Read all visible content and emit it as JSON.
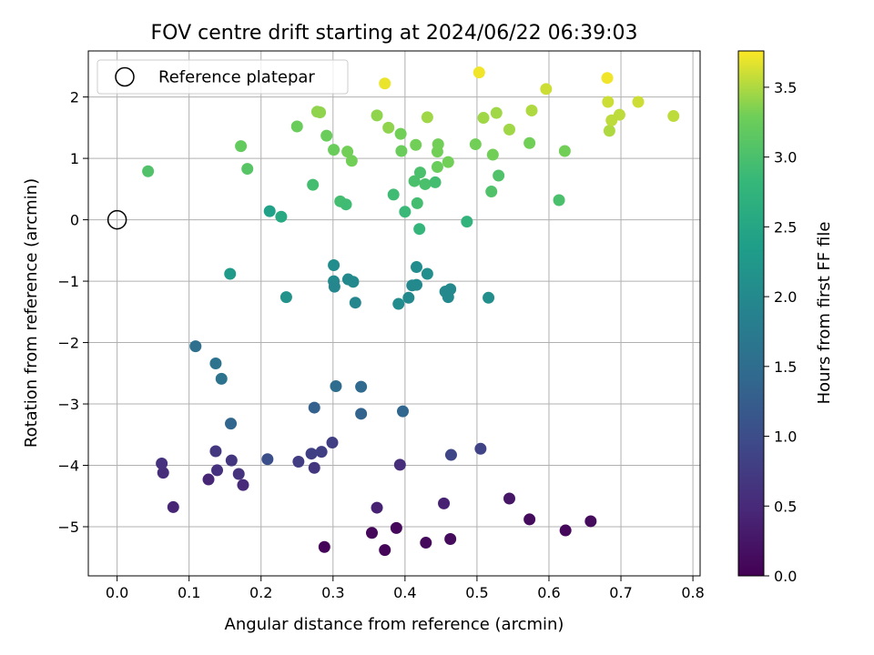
{
  "chart_data": {
    "type": "scatter",
    "title": "FOV centre drift starting at 2024/06/22 06:39:03",
    "xlabel": "Angular distance from reference (arcmin)",
    "ylabel": "Rotation from reference (arcmin)",
    "xlim": [
      -0.04,
      0.81
    ],
    "ylim": [
      -5.8,
      2.75
    ],
    "xticks": [
      "0.0",
      "0.1",
      "0.2",
      "0.3",
      "0.4",
      "0.5",
      "0.6",
      "0.7",
      "0.8"
    ],
    "yticks": [
      "−5",
      "−4",
      "−3",
      "−2",
      "−1",
      "0",
      "1",
      "2"
    ],
    "grid": true,
    "legend": {
      "placement": "top-left",
      "entries": [
        "Reference platepar"
      ]
    },
    "reference_point": {
      "x": 0.0,
      "y": 0.0
    },
    "colorbar": {
      "label": "Hours from first FF file",
      "range": [
        0.0,
        3.76
      ],
      "ticks": [
        "0.0",
        "0.5",
        "1.0",
        "1.5",
        "2.0",
        "2.5",
        "3.0",
        "3.5"
      ],
      "colormap": "viridis"
    },
    "points": [
      {
        "x": 0.288,
        "y": -5.33,
        "t": 0.05
      },
      {
        "x": 0.372,
        "y": -5.38,
        "t": 0.05
      },
      {
        "x": 0.354,
        "y": -5.1,
        "t": 0.08
      },
      {
        "x": 0.388,
        "y": -5.02,
        "t": 0.08
      },
      {
        "x": 0.429,
        "y": -5.26,
        "t": 0.1
      },
      {
        "x": 0.463,
        "y": -5.2,
        "t": 0.12
      },
      {
        "x": 0.623,
        "y": -5.06,
        "t": 0.08
      },
      {
        "x": 0.658,
        "y": -4.91,
        "t": 0.12
      },
      {
        "x": 0.573,
        "y": -4.88,
        "t": 0.12
      },
      {
        "x": 0.545,
        "y": -4.54,
        "t": 0.25
      },
      {
        "x": 0.361,
        "y": -4.69,
        "t": 0.4
      },
      {
        "x": 0.454,
        "y": -4.62,
        "t": 0.4
      },
      {
        "x": 0.078,
        "y": -4.68,
        "t": 0.45
      },
      {
        "x": 0.127,
        "y": -4.23,
        "t": 0.45
      },
      {
        "x": 0.175,
        "y": -4.32,
        "t": 0.5
      },
      {
        "x": 0.064,
        "y": -4.12,
        "t": 0.55
      },
      {
        "x": 0.062,
        "y": -3.97,
        "t": 0.6
      },
      {
        "x": 0.139,
        "y": -4.08,
        "t": 0.6
      },
      {
        "x": 0.169,
        "y": -4.14,
        "t": 0.62
      },
      {
        "x": 0.159,
        "y": -3.92,
        "t": 0.65
      },
      {
        "x": 0.137,
        "y": -3.77,
        "t": 0.7
      },
      {
        "x": 0.252,
        "y": -3.94,
        "t": 0.75
      },
      {
        "x": 0.274,
        "y": -4.04,
        "t": 0.65
      },
      {
        "x": 0.27,
        "y": -3.81,
        "t": 0.8
      },
      {
        "x": 0.284,
        "y": -3.78,
        "t": 0.8
      },
      {
        "x": 0.299,
        "y": -3.63,
        "t": 0.8
      },
      {
        "x": 0.393,
        "y": -3.99,
        "t": 0.55
      },
      {
        "x": 0.464,
        "y": -3.83,
        "t": 0.9
      },
      {
        "x": 0.505,
        "y": -3.73,
        "t": 0.85
      },
      {
        "x": 0.209,
        "y": -3.9,
        "t": 1.05
      },
      {
        "x": 0.158,
        "y": -3.32,
        "t": 1.4
      },
      {
        "x": 0.274,
        "y": -3.06,
        "t": 1.3
      },
      {
        "x": 0.304,
        "y": -2.71,
        "t": 1.5
      },
      {
        "x": 0.339,
        "y": -2.72,
        "t": 1.45
      },
      {
        "x": 0.339,
        "y": -3.16,
        "t": 1.35
      },
      {
        "x": 0.397,
        "y": -3.12,
        "t": 1.4
      },
      {
        "x": 0.109,
        "y": -2.06,
        "t": 1.55
      },
      {
        "x": 0.137,
        "y": -2.34,
        "t": 1.6
      },
      {
        "x": 0.145,
        "y": -2.59,
        "t": 1.6
      },
      {
        "x": 0.301,
        "y": -1.0,
        "t": 2.0
      },
      {
        "x": 0.302,
        "y": -1.09,
        "t": 1.95
      },
      {
        "x": 0.301,
        "y": -0.74,
        "t": 2.05
      },
      {
        "x": 0.321,
        "y": -0.97,
        "t": 2.0
      },
      {
        "x": 0.328,
        "y": -1.01,
        "t": 2.0
      },
      {
        "x": 0.331,
        "y": -1.35,
        "t": 1.95
      },
      {
        "x": 0.391,
        "y": -1.37,
        "t": 2.05
      },
      {
        "x": 0.405,
        "y": -1.27,
        "t": 2.0
      },
      {
        "x": 0.41,
        "y": -1.07,
        "t": 2.0
      },
      {
        "x": 0.416,
        "y": -1.06,
        "t": 2.0
      },
      {
        "x": 0.416,
        "y": -0.77,
        "t": 2.05
      },
      {
        "x": 0.431,
        "y": -0.88,
        "t": 2.1
      },
      {
        "x": 0.456,
        "y": -1.17,
        "t": 2.0
      },
      {
        "x": 0.46,
        "y": -1.26,
        "t": 2.0
      },
      {
        "x": 0.463,
        "y": -1.13,
        "t": 2.0
      },
      {
        "x": 0.516,
        "y": -1.27,
        "t": 2.1
      },
      {
        "x": 0.235,
        "y": -1.26,
        "t": 2.15
      },
      {
        "x": 0.157,
        "y": -0.88,
        "t": 2.3
      },
      {
        "x": 0.212,
        "y": 0.14,
        "t": 2.4
      },
      {
        "x": 0.228,
        "y": 0.05,
        "t": 2.55
      },
      {
        "x": 0.42,
        "y": -0.15,
        "t": 2.8
      },
      {
        "x": 0.486,
        "y": -0.03,
        "t": 2.75
      },
      {
        "x": 0.272,
        "y": 0.57,
        "t": 2.95
      },
      {
        "x": 0.31,
        "y": 0.3,
        "t": 2.95
      },
      {
        "x": 0.318,
        "y": 0.25,
        "t": 2.9
      },
      {
        "x": 0.384,
        "y": 0.41,
        "t": 2.9
      },
      {
        "x": 0.4,
        "y": 0.13,
        "t": 2.85
      },
      {
        "x": 0.417,
        "y": 0.27,
        "t": 2.95
      },
      {
        "x": 0.413,
        "y": 0.63,
        "t": 3.0
      },
      {
        "x": 0.421,
        "y": 0.77,
        "t": 3.0
      },
      {
        "x": 0.428,
        "y": 0.58,
        "t": 3.0
      },
      {
        "x": 0.442,
        "y": 0.61,
        "t": 2.95
      },
      {
        "x": 0.52,
        "y": 0.46,
        "t": 3.05
      },
      {
        "x": 0.53,
        "y": 0.72,
        "t": 3.05
      },
      {
        "x": 0.614,
        "y": 0.32,
        "t": 3.0
      },
      {
        "x": 0.043,
        "y": 0.79,
        "t": 3.05
      },
      {
        "x": 0.181,
        "y": 0.83,
        "t": 3.1
      },
      {
        "x": 0.172,
        "y": 1.2,
        "t": 3.2
      },
      {
        "x": 0.25,
        "y": 1.52,
        "t": 3.25
      },
      {
        "x": 0.291,
        "y": 1.37,
        "t": 3.25
      },
      {
        "x": 0.301,
        "y": 1.14,
        "t": 3.25
      },
      {
        "x": 0.32,
        "y": 1.11,
        "t": 3.3
      },
      {
        "x": 0.326,
        "y": 0.96,
        "t": 3.3
      },
      {
        "x": 0.395,
        "y": 1.12,
        "t": 3.25
      },
      {
        "x": 0.394,
        "y": 1.4,
        "t": 3.3
      },
      {
        "x": 0.415,
        "y": 1.22,
        "t": 3.3
      },
      {
        "x": 0.445,
        "y": 1.11,
        "t": 3.3
      },
      {
        "x": 0.445,
        "y": 0.86,
        "t": 3.25
      },
      {
        "x": 0.446,
        "y": 1.23,
        "t": 3.3
      },
      {
        "x": 0.46,
        "y": 0.94,
        "t": 3.3
      },
      {
        "x": 0.498,
        "y": 1.23,
        "t": 3.3
      },
      {
        "x": 0.522,
        "y": 1.06,
        "t": 3.3
      },
      {
        "x": 0.573,
        "y": 1.25,
        "t": 3.3
      },
      {
        "x": 0.622,
        "y": 1.12,
        "t": 3.3
      },
      {
        "x": 0.278,
        "y": 1.76,
        "t": 3.4
      },
      {
        "x": 0.282,
        "y": 1.75,
        "t": 3.4
      },
      {
        "x": 0.361,
        "y": 1.7,
        "t": 3.4
      },
      {
        "x": 0.377,
        "y": 1.5,
        "t": 3.4
      },
      {
        "x": 0.431,
        "y": 1.67,
        "t": 3.45
      },
      {
        "x": 0.509,
        "y": 1.66,
        "t": 3.45
      },
      {
        "x": 0.527,
        "y": 1.74,
        "t": 3.45
      },
      {
        "x": 0.545,
        "y": 1.47,
        "t": 3.45
      },
      {
        "x": 0.576,
        "y": 1.78,
        "t": 3.5
      },
      {
        "x": 0.596,
        "y": 2.13,
        "t": 3.6
      },
      {
        "x": 0.684,
        "y": 1.45,
        "t": 3.5
      },
      {
        "x": 0.687,
        "y": 1.62,
        "t": 3.55
      },
      {
        "x": 0.698,
        "y": 1.71,
        "t": 3.55
      },
      {
        "x": 0.682,
        "y": 1.92,
        "t": 3.6
      },
      {
        "x": 0.724,
        "y": 1.92,
        "t": 3.6
      },
      {
        "x": 0.773,
        "y": 1.69,
        "t": 3.55
      },
      {
        "x": 0.372,
        "y": 2.22,
        "t": 3.7
      },
      {
        "x": 0.503,
        "y": 2.4,
        "t": 3.72
      },
      {
        "x": 0.681,
        "y": 2.31,
        "t": 3.72
      }
    ]
  }
}
